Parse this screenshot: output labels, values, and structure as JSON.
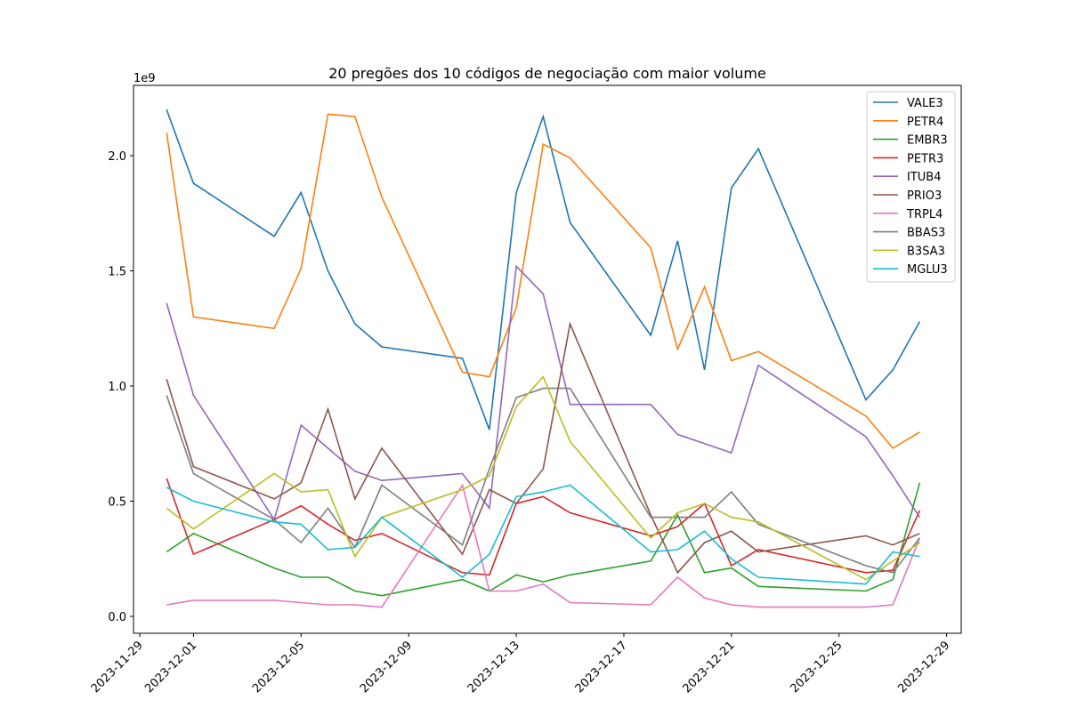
{
  "chart_data": {
    "type": "line",
    "title": "20 pregões dos 10 códigos de negociação com maior volume",
    "xlabel": "",
    "ylabel": "",
    "y_offset_label": "1e9",
    "ylim": [
      -0.07,
      2.3
    ],
    "xlim": [
      "2023-11-28",
      "2023-12-29"
    ],
    "yticks": [
      0.0,
      0.5,
      1.0,
      1.5,
      2.0
    ],
    "ytick_labels": [
      "0.0",
      "0.5",
      "1.0",
      "1.5",
      "2.0"
    ],
    "xticks": [
      "2023-11-29",
      "2023-12-01",
      "2023-12-05",
      "2023-12-09",
      "2023-12-13",
      "2023-12-17",
      "2023-12-21",
      "2023-12-25",
      "2023-12-29"
    ],
    "legend_position": "top-right",
    "grid": false,
    "x": [
      "2023-11-30",
      "2023-12-01",
      "2023-12-04",
      "2023-12-05",
      "2023-12-06",
      "2023-12-07",
      "2023-12-08",
      "2023-12-11",
      "2023-12-12",
      "2023-12-13",
      "2023-12-14",
      "2023-12-15",
      "2023-12-18",
      "2023-12-19",
      "2023-12-20",
      "2023-12-21",
      "2023-12-22",
      "2023-12-26",
      "2023-12-27",
      "2023-12-28"
    ],
    "series": [
      {
        "name": "VALE3",
        "color": "#1f77b4",
        "values": [
          2.2,
          1.88,
          1.65,
          1.84,
          1.5,
          1.27,
          1.17,
          1.12,
          0.81,
          1.84,
          2.17,
          1.71,
          1.22,
          1.63,
          1.07,
          1.86,
          2.03,
          0.94,
          1.07,
          1.28
        ]
      },
      {
        "name": "PETR4",
        "color": "#ff7f0e",
        "values": [
          2.1,
          1.3,
          1.25,
          1.51,
          2.18,
          2.17,
          1.82,
          1.06,
          1.04,
          1.34,
          2.05,
          1.99,
          1.6,
          1.16,
          1.43,
          1.11,
          1.15,
          0.87,
          0.73,
          0.8
        ]
      },
      {
        "name": "EMBR3",
        "color": "#2ca02c",
        "values": [
          0.28,
          0.36,
          0.21,
          0.17,
          0.17,
          0.11,
          0.09,
          0.16,
          0.11,
          0.18,
          0.15,
          0.18,
          0.24,
          0.44,
          0.19,
          0.21,
          0.13,
          0.11,
          0.16,
          0.58
        ]
      },
      {
        "name": "PETR3",
        "color": "#d62728",
        "values": [
          0.6,
          0.27,
          0.42,
          0.48,
          0.4,
          0.33,
          0.36,
          0.19,
          0.18,
          0.49,
          0.52,
          0.45,
          0.35,
          0.39,
          0.49,
          0.22,
          0.29,
          0.19,
          0.2,
          0.46
        ]
      },
      {
        "name": "ITUB4",
        "color": "#9467bd",
        "values": [
          1.36,
          0.96,
          0.42,
          0.83,
          0.73,
          0.63,
          0.59,
          0.62,
          0.47,
          1.52,
          1.4,
          0.92,
          0.92,
          0.79,
          0.75,
          0.71,
          1.09,
          0.78,
          0.61,
          0.43
        ]
      },
      {
        "name": "PRIO3",
        "color": "#8c564b",
        "values": [
          1.03,
          0.65,
          0.51,
          0.58,
          0.9,
          0.51,
          0.73,
          0.27,
          0.55,
          0.49,
          0.64,
          1.27,
          0.44,
          0.19,
          0.32,
          0.37,
          0.28,
          0.35,
          0.31,
          0.36
        ]
      },
      {
        "name": "TRPL4",
        "color": "#e377c2",
        "values": [
          0.05,
          0.07,
          0.07,
          0.06,
          0.05,
          0.05,
          0.04,
          0.57,
          0.11,
          0.11,
          0.14,
          0.06,
          0.05,
          0.17,
          0.08,
          0.05,
          0.04,
          0.04,
          0.05,
          0.34
        ]
      },
      {
        "name": "BBAS3",
        "color": "#7f7f7f",
        "values": [
          0.96,
          0.62,
          0.42,
          0.32,
          0.47,
          0.3,
          0.57,
          0.31,
          0.64,
          0.95,
          0.99,
          0.99,
          0.43,
          0.43,
          0.43,
          0.54,
          0.4,
          0.22,
          0.19,
          0.34
        ]
      },
      {
        "name": "B3SA3",
        "color": "#bcbd22",
        "values": [
          0.47,
          0.38,
          0.62,
          0.54,
          0.55,
          0.26,
          0.43,
          0.55,
          0.61,
          0.91,
          1.04,
          0.76,
          0.34,
          0.45,
          0.49,
          0.43,
          0.41,
          0.16,
          0.24,
          0.32
        ]
      },
      {
        "name": "MGLU3",
        "color": "#17becf",
        "values": [
          0.56,
          0.5,
          0.41,
          0.4,
          0.29,
          0.3,
          0.43,
          0.17,
          0.27,
          0.52,
          0.54,
          0.57,
          0.28,
          0.29,
          0.37,
          0.25,
          0.17,
          0.14,
          0.28,
          0.26
        ]
      }
    ]
  }
}
